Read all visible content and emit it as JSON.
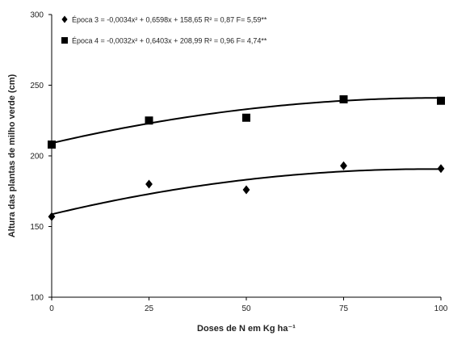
{
  "chart_data": {
    "type": "scatter",
    "xlabel": "Doses de N em Kg ha⁻¹",
    "ylabel": "Altura das plantas de milho verde (cm)",
    "xlim": [
      0,
      100
    ],
    "ylim": [
      100,
      300
    ],
    "x_ticks": [
      "0",
      "25",
      "50",
      "75",
      "100"
    ],
    "y_ticks": [
      "100",
      "150",
      "200",
      "250",
      "300"
    ],
    "x": [
      0,
      25,
      50,
      75,
      100
    ],
    "series": [
      {
        "name": "Época 3",
        "marker": "diamond",
        "values": [
          157,
          180,
          176,
          193,
          191
        ],
        "fit": {
          "a": -0.0034,
          "b": 0.6598,
          "c": 158.65
        },
        "legend": "Época 3 = -0,0034x² + 0,6598x + 158,65  R² = 0,87  F= 5,59**"
      },
      {
        "name": "Época 4",
        "marker": "square",
        "values": [
          208,
          225,
          227,
          240,
          239
        ],
        "fit": {
          "a": -0.0032,
          "b": 0.6403,
          "c": 208.99
        },
        "legend": "Época 4 = -0,0032x² + 0,6403x + 208,99  R² = 0,96  F= 4,74**"
      }
    ],
    "grid": false,
    "legend_position": "top-left",
    "color": "#000000"
  }
}
